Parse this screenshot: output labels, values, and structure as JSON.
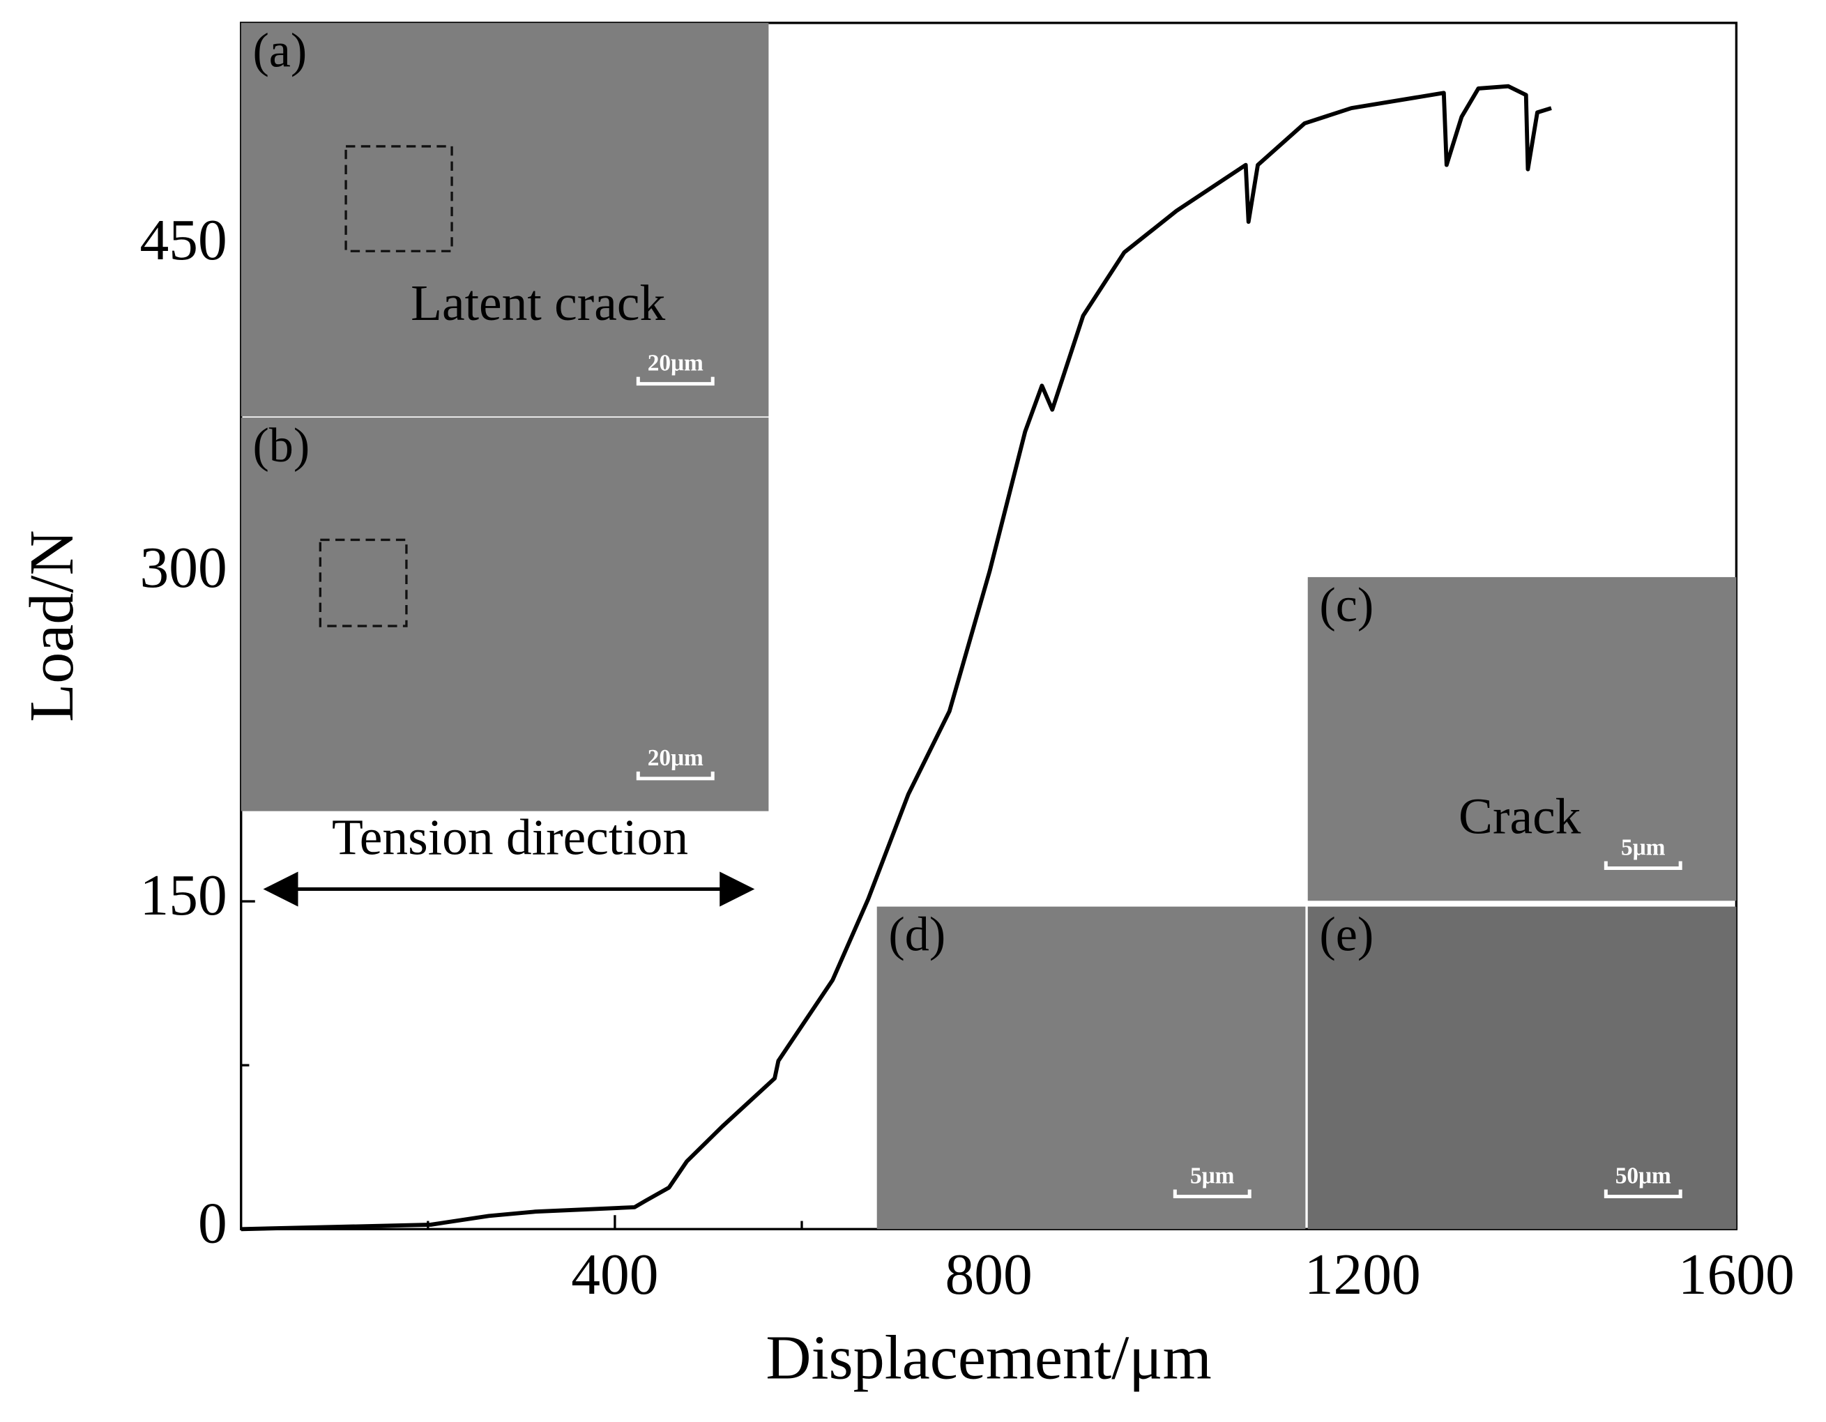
{
  "chart_data": {
    "type": "line",
    "x_label": "Displacement/μm",
    "y_label": "Load/N",
    "x": [
      0,
      203,
      265,
      315,
      421,
      433,
      458,
      477,
      515,
      571,
      575,
      633,
      671,
      714,
      758,
      801,
      839,
      857,
      868,
      901,
      945,
      1001,
      1075,
      1078,
      1088,
      1138,
      1188,
      1287,
      1290,
      1306,
      1324,
      1356,
      1375,
      1377,
      1387,
      1402
    ],
    "series": [
      {
        "name": "Load",
        "color": "#000000",
        "values": [
          0,
          2,
          6,
          8,
          10,
          13,
          19,
          31,
          47,
          69,
          77,
          114,
          151,
          199,
          237,
          301,
          365,
          386,
          375,
          418,
          447,
          466,
          487,
          461,
          487,
          506,
          513,
          520,
          487,
          509,
          522,
          523,
          519,
          485,
          511,
          513
        ]
      }
    ],
    "xlim": [
      0,
      1600
    ],
    "xticks": [
      400,
      800,
      1200,
      1600
    ],
    "ylim": [
      0,
      552
    ],
    "yticks": [
      0,
      150,
      300,
      450
    ],
    "insets": [
      {
        "label": "(a)",
        "caption": "Latent crack",
        "scale": "20μm"
      },
      {
        "label": "(b)",
        "scale": "20μm"
      },
      {
        "label": "(c)",
        "caption": "Crack",
        "scale": "5μm"
      },
      {
        "label": "(d)",
        "scale": "5μm"
      },
      {
        "label": "(e)",
        "scale": "50μm"
      }
    ],
    "annotation": "Tension direction"
  }
}
